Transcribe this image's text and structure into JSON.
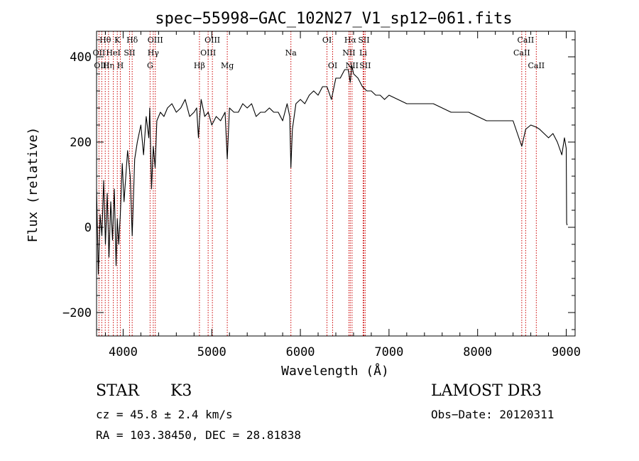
{
  "chart_data": {
    "type": "line",
    "title": "spec−55998−GAC_102N27_V1_sp12−061.fits",
    "xlabel": "Wavelength (Å)",
    "ylabel": "Flux (relative)",
    "xlim": [
      3700,
      9100
    ],
    "ylim": [
      -255,
      460
    ],
    "x_ticks": [
      4000,
      5000,
      6000,
      7000,
      8000,
      9000
    ],
    "y_ticks": [
      -200,
      0,
      200,
      400
    ],
    "grid": false,
    "line_color": "#000000",
    "marker_color": "#cc0000",
    "series": [
      {
        "name": "flux",
        "x": [
          3700,
          3720,
          3740,
          3760,
          3780,
          3800,
          3820,
          3840,
          3860,
          3880,
          3900,
          3920,
          3934,
          3950,
          3968,
          3990,
          4010,
          4050,
          4080,
          4102,
          4130,
          4160,
          4200,
          4230,
          4260,
          4290,
          4300,
          4320,
          4340,
          4361,
          4380,
          4420,
          4460,
          4500,
          4550,
          4600,
          4650,
          4700,
          4750,
          4800,
          4830,
          4850,
          4861,
          4880,
          4920,
          4960,
          5000,
          5050,
          5100,
          5150,
          5175,
          5200,
          5250,
          5300,
          5350,
          5400,
          5450,
          5500,
          5550,
          5600,
          5650,
          5700,
          5750,
          5800,
          5850,
          5880,
          5893,
          5910,
          5950,
          6000,
          6050,
          6100,
          6150,
          6200,
          6250,
          6300,
          6350,
          6400,
          6450,
          6500,
          6540,
          6563,
          6580,
          6600,
          6650,
          6700,
          6750,
          6800,
          6850,
          6900,
          6950,
          7000,
          7100,
          7200,
          7300,
          7400,
          7500,
          7600,
          7700,
          7800,
          7900,
          8000,
          8100,
          8200,
          8300,
          8400,
          8498,
          8542,
          8600,
          8662,
          8700,
          8750,
          8800,
          8850,
          8900,
          8950,
          8980,
          9000,
          9005,
          9010
        ],
        "y": [
          90,
          -110,
          30,
          -20,
          110,
          -40,
          80,
          -70,
          60,
          -30,
          90,
          -90,
          20,
          -40,
          30,
          150,
          60,
          180,
          120,
          -20,
          160,
          200,
          240,
          170,
          260,
          210,
          280,
          90,
          190,
          140,
          250,
          270,
          260,
          280,
          290,
          270,
          280,
          300,
          260,
          270,
          280,
          210,
          250,
          300,
          260,
          270,
          240,
          260,
          250,
          270,
          160,
          280,
          270,
          270,
          290,
          280,
          290,
          260,
          270,
          270,
          280,
          270,
          270,
          250,
          290,
          260,
          140,
          230,
          290,
          300,
          290,
          310,
          320,
          310,
          330,
          330,
          300,
          350,
          350,
          370,
          370,
          340,
          380,
          360,
          350,
          330,
          320,
          320,
          310,
          310,
          300,
          310,
          300,
          290,
          290,
          290,
          290,
          280,
          270,
          270,
          270,
          260,
          250,
          250,
          250,
          250,
          190,
          230,
          240,
          235,
          230,
          220,
          210,
          220,
          200,
          170,
          210,
          185,
          10,
          5
        ]
      }
    ],
    "line_markers": [
      {
        "label": "Hθ",
        "wavelength": 3798,
        "row": 0
      },
      {
        "label": "OII",
        "wavelength": 3727,
        "row": 1
      },
      {
        "label": "OIII",
        "wavelength": 3759,
        "row": 2
      },
      {
        "label": "Hη",
        "wavelength": 3835,
        "row": 2
      },
      {
        "label": "HeI",
        "wavelength": 3889,
        "row": 1
      },
      {
        "label": "K",
        "wavelength": 3934,
        "row": 0
      },
      {
        "label": "H",
        "wavelength": 3968,
        "row": 2
      },
      {
        "label": "SII",
        "wavelength": 4072,
        "row": 1
      },
      {
        "label": "Hδ",
        "wavelength": 4102,
        "row": 0
      },
      {
        "label": "OIII",
        "wavelength": 4363,
        "row": 0
      },
      {
        "label": "Hγ",
        "wavelength": 4340,
        "row": 1
      },
      {
        "label": "G",
        "wavelength": 4304,
        "row": 2
      },
      {
        "label": "Hβ",
        "wavelength": 4861,
        "row": 2
      },
      {
        "label": "OIII",
        "wavelength": 5007,
        "row": 0
      },
      {
        "label": "OIII",
        "wavelength": 4959,
        "row": 1
      },
      {
        "label": "Mg",
        "wavelength": 5175,
        "row": 2
      },
      {
        "label": "Na",
        "wavelength": 5893,
        "row": 1
      },
      {
        "label": "OI",
        "wavelength": 6300,
        "row": 0
      },
      {
        "label": "OI",
        "wavelength": 6364,
        "row": 2
      },
      {
        "label": "Hα",
        "wavelength": 6563,
        "row": 0
      },
      {
        "label": "NII",
        "wavelength": 6548,
        "row": 1
      },
      {
        "label": "NII",
        "wavelength": 6583,
        "row": 2
      },
      {
        "label": "Li",
        "wavelength": 6708,
        "row": 1
      },
      {
        "label": "SII",
        "wavelength": 6716,
        "row": 0
      },
      {
        "label": "SII",
        "wavelength": 6731,
        "row": 2
      },
      {
        "label": "CaII",
        "wavelength": 8542,
        "row": 0
      },
      {
        "label": "CaII",
        "wavelength": 8498,
        "row": 1
      },
      {
        "label": "CaII",
        "wavelength": 8662,
        "row": 2
      }
    ]
  },
  "info": {
    "object_class": "STAR",
    "subclass": "K3",
    "survey": "LAMOST DR3",
    "cz": "cz = 45.8 ± 2.4 km/s",
    "obs_date": "Obs−Date: 20120311",
    "coords": "RA = 103.38450, DEC =  28.81838"
  }
}
